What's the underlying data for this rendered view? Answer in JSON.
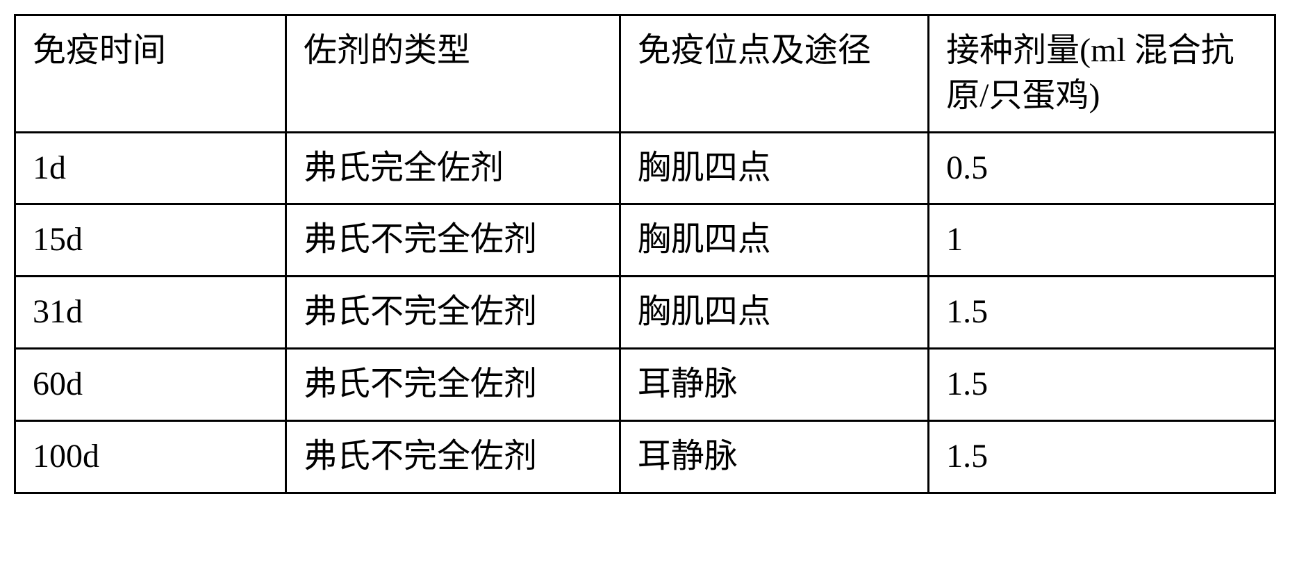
{
  "table": {
    "type": "table",
    "border_color": "#000000",
    "border_width": 3,
    "background_color": "#ffffff",
    "text_color": "#000000",
    "font_size": 48,
    "columns": [
      {
        "label": "免疫时间",
        "width_pct": 21.5
      },
      {
        "label": "佐剂的类型",
        "width_pct": 26.5
      },
      {
        "label": "免疫位点及途径",
        "width_pct": 24.5
      },
      {
        "label": "接种剂量(ml 混合抗原/只蛋鸡)",
        "width_pct": 27.5
      }
    ],
    "rows": [
      {
        "c0": "1d",
        "c1": "弗氏完全佐剂",
        "c2": "胸肌四点",
        "c3": "0.5"
      },
      {
        "c0": "15d",
        "c1": "弗氏不完全佐剂",
        "c2": "胸肌四点",
        "c3": "1"
      },
      {
        "c0": "31d",
        "c1": "弗氏不完全佐剂",
        "c2": "胸肌四点",
        "c3": "1.5"
      },
      {
        "c0": "60d",
        "c1": "弗氏不完全佐剂",
        "c2": "耳静脉",
        "c3": "1.5"
      },
      {
        "c0": "100d",
        "c1": "弗氏不完全佐剂",
        "c2": "耳静脉",
        "c3": "1.5"
      }
    ]
  }
}
